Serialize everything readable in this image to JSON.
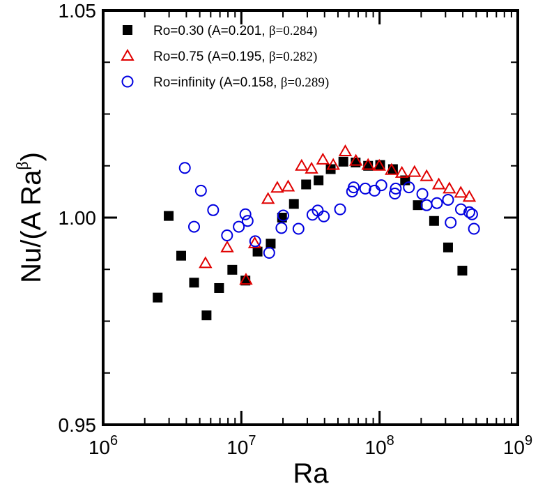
{
  "chart_data": {
    "type": "scatter",
    "xscale": "log",
    "xlim": [
      1000000,
      1000000000
    ],
    "ylim": [
      0.95,
      1.05
    ],
    "xlabel": "Ra",
    "ylabel": "Nu/(A Ra^β)",
    "ylabel_parts": {
      "main": "Nu/(A Ra",
      "sup": "β",
      "close": ")"
    },
    "x_ticks": [
      {
        "value": 1000000,
        "base": "10",
        "exp": "6"
      },
      {
        "value": 10000000,
        "base": "10",
        "exp": "7"
      },
      {
        "value": 100000000,
        "base": "10",
        "exp": "8"
      },
      {
        "value": 1000000000,
        "base": "10",
        "exp": "9"
      }
    ],
    "y_ticks": [
      {
        "value": 0.95,
        "label": "0.95"
      },
      {
        "value": 1.0,
        "label": "1.00"
      },
      {
        "value": 1.05,
        "label": "1.05"
      }
    ],
    "y_minor_ticks": [
      0.9625,
      0.975,
      0.9875,
      1.0125,
      1.025,
      1.0375
    ],
    "legend_position": "top-left",
    "series": [
      {
        "name": "Ro=0.30",
        "legend_main": "Ro=0.30 (A=0.201, ",
        "legend_beta": "β=0.284)",
        "marker": "square",
        "color": "#000000",
        "points": [
          [
            2480000,
            0.9807
          ],
          [
            2980000,
            1.0004
          ],
          [
            3670000,
            0.9908
          ],
          [
            4550000,
            0.9843
          ],
          [
            5600000,
            0.9764
          ],
          [
            6900000,
            0.983
          ],
          [
            8600000,
            0.9874
          ],
          [
            10700000,
            0.9848
          ],
          [
            13100000,
            0.9918
          ],
          [
            16300000,
            0.9937
          ],
          [
            19700000,
            1.0
          ],
          [
            24000000,
            1.0033
          ],
          [
            29400000,
            1.008
          ],
          [
            36200000,
            1.009
          ],
          [
            44300000,
            1.0117
          ],
          [
            54700000,
            1.0135
          ],
          [
            67100000,
            1.0133
          ],
          [
            82600000,
            1.0125
          ],
          [
            101000000,
            1.0127
          ],
          [
            125000000,
            1.0117
          ],
          [
            153000000,
            1.009
          ],
          [
            189000000,
            1.003
          ],
          [
            248000000,
            0.9992
          ],
          [
            313000000,
            0.9928
          ],
          [
            397000000,
            0.9872
          ]
        ]
      },
      {
        "name": "Ro=0.75",
        "legend_main": "Ro=0.75 (A=0.195, ",
        "legend_beta": "β=0.282)",
        "marker": "triangle",
        "color": "#e00000",
        "points": [
          [
            5500000,
            0.989
          ],
          [
            7900000,
            0.9928
          ],
          [
            10800000,
            0.985
          ],
          [
            12500000,
            0.9938
          ],
          [
            15600000,
            1.0045
          ],
          [
            18200000,
            1.0072
          ],
          [
            21800000,
            1.0075
          ],
          [
            27300000,
            1.0125
          ],
          [
            32200000,
            1.0118
          ],
          [
            38900000,
            1.014
          ],
          [
            46200000,
            1.0127
          ],
          [
            56500000,
            1.016
          ],
          [
            67400000,
            1.0137
          ],
          [
            82600000,
            1.0127
          ],
          [
            99500000,
            1.0125
          ],
          [
            122000000,
            1.0115
          ],
          [
            145000000,
            1.0108
          ],
          [
            179000000,
            1.011
          ],
          [
            219000000,
            1.01
          ],
          [
            268000000,
            1.008
          ],
          [
            320000000,
            1.007
          ],
          [
            387000000,
            1.006
          ],
          [
            446000000,
            1.005
          ]
        ]
      },
      {
        "name": "Ro=infinity",
        "legend_main": "Ro=infinity (A=0.158, ",
        "legend_beta": "β=0.289)",
        "marker": "circle",
        "color": "#0000e0",
        "points": [
          [
            3900000,
            1.012
          ],
          [
            4550000,
            0.9978
          ],
          [
            5100000,
            1.0065
          ],
          [
            6250000,
            1.0018
          ],
          [
            7880000,
            0.9957
          ],
          [
            9580000,
            0.9978
          ],
          [
            10700000,
            1.0008
          ],
          [
            11100000,
            0.9992
          ],
          [
            12600000,
            0.9943
          ],
          [
            15900000,
            0.9915
          ],
          [
            19500000,
            0.9975
          ],
          [
            20100000,
            1.0005
          ],
          [
            25900000,
            0.9973
          ],
          [
            32700000,
            1.0007
          ],
          [
            35700000,
            1.0017
          ],
          [
            39500000,
            1.0003
          ],
          [
            51800000,
            1.002
          ],
          [
            63300000,
            1.0063
          ],
          [
            65000000,
            1.0073
          ],
          [
            78800000,
            1.007
          ],
          [
            91900000,
            1.0065
          ],
          [
            103000000,
            1.0078
          ],
          [
            129000000,
            1.0058
          ],
          [
            131000000,
            1.007
          ],
          [
            163000000,
            1.0073
          ],
          [
            204000000,
            1.0057
          ],
          [
            219000000,
            1.003
          ],
          [
            260000000,
            1.0035
          ],
          [
            313000000,
            1.0043
          ],
          [
            327000000,
            0.9988
          ],
          [
            388000000,
            1.002
          ],
          [
            446000000,
            1.0013
          ],
          [
            467000000,
            1.0008
          ],
          [
            482000000,
            0.9973
          ]
        ]
      }
    ]
  }
}
